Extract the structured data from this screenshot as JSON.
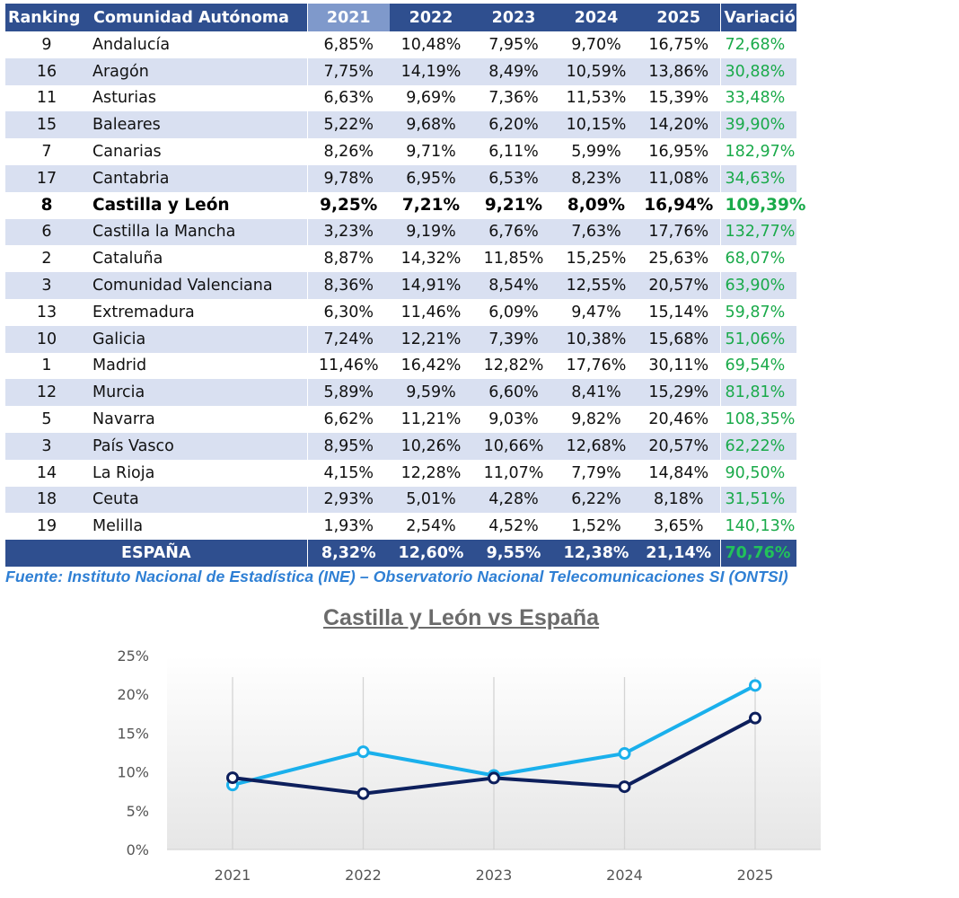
{
  "table": {
    "headers": [
      "Ranking",
      "Comunidad Autónoma",
      "2021",
      "2022",
      "2023",
      "2024",
      "2025",
      "Variación"
    ],
    "rows": [
      {
        "rank": "9",
        "name": "Andalucía",
        "y2021": "6,85%",
        "y2022": "10,48%",
        "y2023": "7,95%",
        "y2024": "9,70%",
        "y2025": "16,75%",
        "variacion": "72,68%"
      },
      {
        "rank": "16",
        "name": "Aragón",
        "y2021": "7,75%",
        "y2022": "14,19%",
        "y2023": "8,49%",
        "y2024": "10,59%",
        "y2025": "13,86%",
        "variacion": "30,88%"
      },
      {
        "rank": "11",
        "name": "Asturias",
        "y2021": "6,63%",
        "y2022": "9,69%",
        "y2023": "7,36%",
        "y2024": "11,53%",
        "y2025": "15,39%",
        "variacion": "33,48%"
      },
      {
        "rank": "15",
        "name": "Baleares",
        "y2021": "5,22%",
        "y2022": "9,68%",
        "y2023": "6,20%",
        "y2024": "10,15%",
        "y2025": "14,20%",
        "variacion": "39,90%"
      },
      {
        "rank": "7",
        "name": "Canarias",
        "y2021": "8,26%",
        "y2022": "9,71%",
        "y2023": "6,11%",
        "y2024": "5,99%",
        "y2025": "16,95%",
        "variacion": "182,97%"
      },
      {
        "rank": "17",
        "name": "Cantabria",
        "y2021": "9,78%",
        "y2022": "6,95%",
        "y2023": "6,53%",
        "y2024": "8,23%",
        "y2025": "11,08%",
        "variacion": "34,63%"
      },
      {
        "rank": "8",
        "name": "Castilla y León",
        "y2021": "9,25%",
        "y2022": "7,21%",
        "y2023": "9,21%",
        "y2024": "8,09%",
        "y2025": "16,94%",
        "variacion": "109,39%",
        "highlight": true
      },
      {
        "rank": "6",
        "name": "Castilla la Mancha",
        "y2021": "3,23%",
        "y2022": "9,19%",
        "y2023": "6,76%",
        "y2024": "7,63%",
        "y2025": "17,76%",
        "variacion": "132,77%"
      },
      {
        "rank": "2",
        "name": "Cataluña",
        "y2021": "8,87%",
        "y2022": "14,32%",
        "y2023": "11,85%",
        "y2024": "15,25%",
        "y2025": "25,63%",
        "variacion": "68,07%"
      },
      {
        "rank": "3",
        "name": "Comunidad Valenciana",
        "y2021": "8,36%",
        "y2022": "14,91%",
        "y2023": "8,54%",
        "y2024": "12,55%",
        "y2025": "20,57%",
        "variacion": "63,90%"
      },
      {
        "rank": "13",
        "name": "Extremadura",
        "y2021": "6,30%",
        "y2022": "11,46%",
        "y2023": "6,09%",
        "y2024": "9,47%",
        "y2025": "15,14%",
        "variacion": "59,87%"
      },
      {
        "rank": "10",
        "name": "Galicia",
        "y2021": "7,24%",
        "y2022": "12,21%",
        "y2023": "7,39%",
        "y2024": "10,38%",
        "y2025": "15,68%",
        "variacion": "51,06%"
      },
      {
        "rank": "1",
        "name": "Madrid",
        "y2021": "11,46%",
        "y2022": "16,42%",
        "y2023": "12,82%",
        "y2024": "17,76%",
        "y2025": "30,11%",
        "variacion": "69,54%"
      },
      {
        "rank": "12",
        "name": "Murcia",
        "y2021": "5,89%",
        "y2022": "9,59%",
        "y2023": "6,60%",
        "y2024": "8,41%",
        "y2025": "15,29%",
        "variacion": "81,81%"
      },
      {
        "rank": "5",
        "name": "Navarra",
        "y2021": "6,62%",
        "y2022": "11,21%",
        "y2023": "9,03%",
        "y2024": "9,82%",
        "y2025": "20,46%",
        "variacion": "108,35%"
      },
      {
        "rank": "3",
        "name": "País Vasco",
        "y2021": "8,95%",
        "y2022": "10,26%",
        "y2023": "10,66%",
        "y2024": "12,68%",
        "y2025": "20,57%",
        "variacion": "62,22%"
      },
      {
        "rank": "14",
        "name": "La Rioja",
        "y2021": "4,15%",
        "y2022": "12,28%",
        "y2023": "11,07%",
        "y2024": "7,79%",
        "y2025": "14,84%",
        "variacion": "90,50%"
      },
      {
        "rank": "18",
        "name": "Ceuta",
        "y2021": "2,93%",
        "y2022": "5,01%",
        "y2023": "4,28%",
        "y2024": "6,22%",
        "y2025": "8,18%",
        "variacion": "31,51%"
      },
      {
        "rank": "19",
        "name": "Melilla",
        "y2021": "1,93%",
        "y2022": "2,54%",
        "y2023": "4,52%",
        "y2024": "1,52%",
        "y2025": "3,65%",
        "variacion": "140,13%"
      }
    ],
    "total": {
      "label": "ESPAÑA",
      "y2021": "8,32%",
      "y2022": "12,60%",
      "y2023": "9,55%",
      "y2024": "12,38%",
      "y2025": "21,14%",
      "variacion": "70,76%"
    }
  },
  "source_note": "Fuente: Instituto Nacional de Estadística (INE) – Observatorio Nacional Telecomunicaciones SI (ONTSI)",
  "colors": {
    "header_bg": "#2f4f8f",
    "header_2021_bg": "#7f99cb",
    "row_alt_bg": "#d9e0f1",
    "variation_text": "#1aaa4a",
    "source_text": "#2e7fd4",
    "series_espana": "#1ab0ec",
    "series_cyl": "#0d1f5c"
  },
  "chart_data": {
    "type": "line",
    "title": "Castilla y León vs España",
    "categories": [
      "2021",
      "2022",
      "2023",
      "2024",
      "2025"
    ],
    "ylim": [
      0,
      25
    ],
    "yticks": [
      "0%",
      "5%",
      "10%",
      "15%",
      "20%",
      "25%"
    ],
    "ytick_values": [
      0,
      5,
      10,
      15,
      20,
      25
    ],
    "xlabel": "",
    "ylabel": "",
    "series": [
      {
        "name": "Castilla y León",
        "values": [
          9.25,
          7.21,
          9.21,
          8.09,
          16.94
        ]
      },
      {
        "name": "España",
        "values": [
          8.32,
          12.6,
          9.55,
          12.38,
          21.14
        ]
      }
    ]
  }
}
